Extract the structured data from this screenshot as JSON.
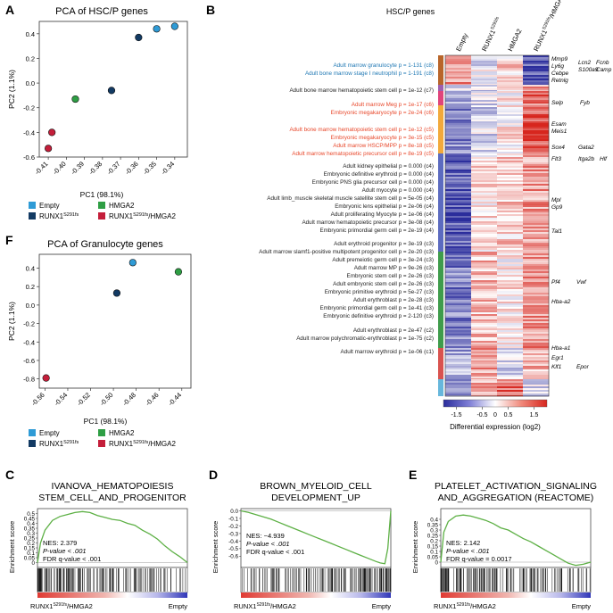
{
  "panel_letters": {
    "A": "A",
    "B": "B",
    "C": "C",
    "D": "D",
    "E": "E",
    "F": "F"
  },
  "colors": {
    "empty": "#2f9bd6",
    "runx1": "#123a63",
    "hmga2": "#2e9e44",
    "runx1_hmga2": "#c41e3a",
    "blue_text": "#1f78b4",
    "red_text": "#e8472a",
    "gsea_line": "#5db045"
  },
  "legend": {
    "empty": "Empty",
    "hmga2": "HMGA2",
    "runx1_base": "RUNX1",
    "runx1_sup": "S291fs",
    "runx1_hmga2_suffix": "/HMGA2"
  },
  "chart_data": [
    {
      "id": "A",
      "type": "scatter",
      "title": "PCA of HSC/P genes",
      "xlabel": "PC1 (98.1%)",
      "ylabel": "PC2 (1.1%)",
      "xlim": [
        -0.415,
        -0.333
      ],
      "ylim": [
        -0.6,
        0.5
      ],
      "xticks": [
        -0.41,
        -0.4,
        -0.39,
        -0.38,
        -0.37,
        -0.36,
        -0.35,
        -0.34
      ],
      "xtick_labels": [
        "-0.41",
        "-0.40",
        "-0.39",
        "-0.38",
        "-0.37",
        "-0.36",
        "-0.35",
        "-0.34"
      ],
      "yticks": [
        0.4,
        0.2,
        0.0,
        -0.2,
        -0.4,
        -0.6
      ],
      "ytick_labels": [
        "0.4",
        "0.2",
        "0.0",
        "-0.2",
        "-0.4",
        "-0.6"
      ],
      "series": [
        {
          "name": "Empty",
          "color_key": "empty",
          "points": [
            [
              -0.34,
              0.46
            ],
            [
              -0.35,
              0.44
            ]
          ]
        },
        {
          "name": "RUNX1 S291fs",
          "color_key": "runx1",
          "points": [
            [
              -0.36,
              0.37
            ],
            [
              -0.375,
              -0.06
            ]
          ]
        },
        {
          "name": "HMGA2",
          "color_key": "hmga2",
          "points": [
            [
              -0.395,
              -0.13
            ]
          ]
        },
        {
          "name": "RUNX1 S291fs/HMGA2",
          "color_key": "runx1_hmga2",
          "points": [
            [
              -0.408,
              -0.4
            ],
            [
              -0.41,
              -0.53
            ]
          ]
        }
      ]
    },
    {
      "id": "F",
      "type": "scatter",
      "title": "PCA of Granulocyte genes",
      "xlabel": "PC1 (98.1%)",
      "ylabel": "PC2 (1.1%)",
      "xlim": [
        -0.565,
        -0.432
      ],
      "ylim": [
        -0.9,
        0.55
      ],
      "xticks": [
        -0.56,
        -0.54,
        -0.52,
        -0.5,
        -0.48,
        -0.46,
        -0.44
      ],
      "xtick_labels": [
        "-0.56",
        "-0.54",
        "-0.52",
        "-0.50",
        "-0.48",
        "-0.46",
        "-0.44"
      ],
      "yticks": [
        0.4,
        0.2,
        0.0,
        -0.2,
        -0.4,
        -0.6,
        -0.8
      ],
      "ytick_labels": [
        "0.4",
        "0.2",
        "0.0",
        "-0.2",
        "-0.4",
        "-0.6",
        "-0.8"
      ],
      "series": [
        {
          "name": "Empty",
          "color_key": "empty",
          "points": [
            [
              -0.483,
              0.46
            ]
          ]
        },
        {
          "name": "RUNX1 S291fs",
          "color_key": "runx1",
          "points": [
            [
              -0.497,
              0.13
            ]
          ]
        },
        {
          "name": "HMGA2",
          "color_key": "hmga2",
          "points": [
            [
              -0.443,
              0.36
            ]
          ]
        },
        {
          "name": "RUNX1 S291fs/HMGA2",
          "color_key": "runx1_hmga2",
          "points": [
            [
              -0.559,
              -0.79
            ]
          ]
        }
      ]
    },
    {
      "id": "B",
      "type": "heatmap",
      "title": "HSC/P genes",
      "columns": [
        {
          "base": "Empty",
          "sup": "",
          "suffix": ""
        },
        {
          "base": "RUNX1",
          "sup": "S291fs",
          "suffix": ""
        },
        {
          "base": "HMGA2",
          "sup": "",
          "suffix": ""
        },
        {
          "base": "RUNX1",
          "sup": "S291fs",
          "suffix": "/HMGA2"
        }
      ],
      "colorbar": {
        "ticks": [
          -1.5,
          -0.5,
          0.5,
          1.5
        ],
        "tick_labels": [
          "-1.5",
          "-0.5",
          "0.5",
          "1.5"
        ],
        "zero_label": "0",
        "range": [
          -2,
          2
        ],
        "label": "Differential expression (log2)"
      },
      "clusters": [
        {
          "name": "c8",
          "color": "#b8652a",
          "profile": [
            1.0,
            -0.2,
            0.4,
            -1.6
          ]
        },
        {
          "name": "c7",
          "color": "#9d5fae",
          "profile": [
            -0.4,
            -0.3,
            0.1,
            0.8
          ]
        },
        {
          "name": "c6",
          "color": "#e0447b",
          "profile": [
            -0.6,
            -0.3,
            0.2,
            1.3
          ]
        },
        {
          "name": "c5",
          "color": "#f2a93b",
          "profile": [
            -1.1,
            -0.4,
            0.2,
            1.6
          ]
        },
        {
          "name": "c4",
          "color": "#5c6bc0",
          "profile": [
            -1.5,
            0.3,
            0.5,
            0.9
          ]
        },
        {
          "name": "c3",
          "color": "#3f9c4b",
          "profile": [
            -1.2,
            0.6,
            0.2,
            1.0
          ]
        },
        {
          "name": "c2",
          "color": "#d9534f",
          "profile": [
            -0.8,
            0.9,
            -0.3,
            0.7
          ]
        },
        {
          "name": "c1",
          "color": "#67b7dc",
          "profile": [
            -1.0,
            0.7,
            1.4,
            -0.4
          ]
        }
      ],
      "annotations": [
        {
          "text": "Adult marrow granulocyte p = 1-131 (c8)",
          "color_key": "blue_text"
        },
        {
          "text": "Adult bone marrow stage I neutrophil p = 1-191 (c8)",
          "color_key": "blue_text"
        },
        {
          "text": "Adult bone marrow hematopoietic stem cell p = 1e-12 (c7)",
          "color_key": "default"
        },
        {
          "text": "Adult marrow Meg p = 1e-17 (c6)",
          "color_key": "red_text"
        },
        {
          "text": "Embryonic megakaryocyte p = 2e-24 (c6)",
          "color_key": "red_text"
        },
        {
          "text": "Adult bone marrow hematopoietic stem cell p = 1e-12 (c5)",
          "color_key": "red_text"
        },
        {
          "text": "Embryonic megakaryocyte p = 3e-15 (c5)",
          "color_key": "red_text"
        },
        {
          "text": "Adult marrow HSCP/MPP p = 8e-18 (c5)",
          "color_key": "red_text"
        },
        {
          "text": "Adult marrow hematopoietic precursor cell p = 8e-19 (c5)",
          "color_key": "red_text"
        },
        {
          "text": "Adult kidney epithelial p = 0.000 (c4)",
          "color_key": "default"
        },
        {
          "text": "Embryonic definitive erythroid p = 0.000 (c4)",
          "color_key": "default"
        },
        {
          "text": "Embryonic PNS glia precursor cell p = 0.000 (c4)",
          "color_key": "default"
        },
        {
          "text": "Adult myocyte p = 0.000 (c4)",
          "color_key": "default"
        },
        {
          "text": "Adult limb_muscle skeletal muscle satellite stem cell p = 5e-05 (c4)",
          "color_key": "default"
        },
        {
          "text": "Embryonic lens epithelial p = 2e-06 (c4)",
          "color_key": "default"
        },
        {
          "text": "Adult proliferating Myocyte p = 1e-06 (c4)",
          "color_key": "default"
        },
        {
          "text": "Adult marrow hematopoietic precursor p = 3e-08 (c4)",
          "color_key": "default"
        },
        {
          "text": "Embryonic primordial germ cell p = 2e-19 (c4)",
          "color_key": "default"
        },
        {
          "text": "Adult erythroid progenitor p = 3e-19 (c3)",
          "color_key": "default"
        },
        {
          "text": "Adult marrow slamf1-positive multipotent progenitor cell p = 2e-20 (c3)",
          "color_key": "default"
        },
        {
          "text": "Adult premeiotic germ cell p = 3e-24 (c3)",
          "color_key": "default"
        },
        {
          "text": "Adult marrow MP p = 9e-26 (c3)",
          "color_key": "default"
        },
        {
          "text": "Embryonic stem cell p = 2e-26 (c3)",
          "color_key": "default"
        },
        {
          "text": "Adult embryonic stem cell p = 2e-26 (c3)",
          "color_key": "default"
        },
        {
          "text": "Embryonic primitive erythroid p = 5e-27 (c3)",
          "color_key": "default"
        },
        {
          "text": "Adult erythroblast p = 2e-28 (c3)",
          "color_key": "default"
        },
        {
          "text": "Embryonic primordial germ cell p = 1e-41 (c3)",
          "color_key": "default"
        },
        {
          "text": "Embryonic definitive erythroid p = 2-120 (c3)",
          "color_key": "default"
        },
        {
          "text": "Adult erythroblast p = 2e-47 (c2)",
          "color_key": "default"
        },
        {
          "text": "Adult marrow polychromatic-erythroblast p = 1e-75 (c2)",
          "color_key": "default"
        },
        {
          "text": "Adult marrow erythroid p = 1e-06 (c1)",
          "color_key": "default"
        }
      ],
      "gene_labels": [
        "Mmp9",
        "Ly6g",
        "Cebpe",
        "Retnlg",
        "Lcn2",
        "S100a9",
        "Fcnb",
        "Camp",
        "Selp",
        "Fyb",
        "Esam",
        "Meis1",
        "Sox4",
        "Gata2",
        "Flt3",
        "Itga2b",
        "Hlf",
        "Mpl",
        "Gp9",
        "Tal1",
        "Pf4",
        "Vwf",
        "Hba-a2",
        "Hba-a1",
        "Egr1",
        "Klf1",
        "Epor"
      ]
    },
    {
      "id": "C",
      "type": "line",
      "title_lines": [
        "IVANOVA_HEMATOPOIESIS",
        "STEM_CELL_AND_PROGENITOR"
      ],
      "ylabel": "Enrichment score",
      "ylim": [
        -0.05,
        0.55
      ],
      "yticks": [
        0.5,
        0.45,
        0.4,
        0.35,
        0.3,
        0.25,
        0.2,
        0.15,
        0.1,
        0.05,
        0.0
      ],
      "ytick_labels": [
        "0.5",
        "0.45",
        "0.4",
        "0.35",
        "0.3",
        "0.25",
        "0.2",
        "0.15",
        "0.1",
        "0.05",
        "0"
      ],
      "x": [
        0,
        0.02,
        0.05,
        0.1,
        0.15,
        0.2,
        0.25,
        0.3,
        0.35,
        0.4,
        0.45,
        0.5,
        0.55,
        0.6,
        0.65,
        0.7,
        0.75,
        0.8,
        0.85,
        0.9,
        0.95,
        1.0
      ],
      "y": [
        0.0,
        0.2,
        0.33,
        0.43,
        0.47,
        0.49,
        0.51,
        0.52,
        0.51,
        0.48,
        0.46,
        0.44,
        0.43,
        0.4,
        0.38,
        0.33,
        0.29,
        0.24,
        0.17,
        0.11,
        0.06,
        0.0
      ],
      "stats": {
        "nes": "NES: 2.379",
        "p": "P-value < .001",
        "fdr": "FDR q-value < .001"
      },
      "left_label_base": "RUNX1",
      "left_label_sup": "S291fs",
      "left_label_suffix": "/HMGA2",
      "right_label": "Empty",
      "hit_seed": 11,
      "hit_bias": "left"
    },
    {
      "id": "D",
      "type": "line",
      "title_lines": [
        "BROWN_MYELOID_CELL",
        "DEVELOPMENT_UP"
      ],
      "ylabel": "Enrichment score",
      "ylim": [
        -0.75,
        0.03
      ],
      "yticks": [
        0.0,
        -0.1,
        -0.2,
        -0.3,
        -0.4,
        -0.5,
        -0.6
      ],
      "ytick_labels": [
        "0.0",
        "-0.1",
        "-0.2",
        "-0.3",
        "-0.4",
        "-0.5",
        "-0.6"
      ],
      "x": [
        0,
        0.05,
        0.1,
        0.15,
        0.2,
        0.25,
        0.3,
        0.35,
        0.4,
        0.45,
        0.5,
        0.55,
        0.6,
        0.65,
        0.7,
        0.75,
        0.8,
        0.85,
        0.9,
        0.93,
        0.96,
        0.98,
        1.0
      ],
      "y": [
        0.0,
        -0.02,
        -0.05,
        -0.08,
        -0.11,
        -0.15,
        -0.19,
        -0.23,
        -0.27,
        -0.31,
        -0.35,
        -0.39,
        -0.43,
        -0.47,
        -0.51,
        -0.55,
        -0.59,
        -0.63,
        -0.67,
        -0.69,
        -0.7,
        -0.5,
        0.0
      ],
      "stats": {
        "nes": "NES: −4.939",
        "p": "P-value < .001",
        "fdr": "FDR q-value < .001"
      },
      "left_label_base": "RUNX1",
      "left_label_sup": "S291fs",
      "left_label_suffix": "/HMGA2",
      "right_label": "Empty",
      "hit_seed": 23,
      "hit_bias": "right"
    },
    {
      "id": "E",
      "type": "line",
      "title_lines": [
        "PLATELET_ACTIVATION_SIGNALING",
        "AND_AGGREGATION (REACTOME)"
      ],
      "ylabel": "Enrichment score",
      "ylim": [
        -0.05,
        0.5
      ],
      "yticks": [
        0.4,
        0.35,
        0.3,
        0.25,
        0.2,
        0.15,
        0.1,
        0.05,
        0.0
      ],
      "ytick_labels": [
        "0.4",
        "0.35",
        "0.3",
        "0.25",
        "0.2",
        "0.15",
        "0.1",
        "0.05",
        "0"
      ],
      "x": [
        0,
        0.02,
        0.05,
        0.1,
        0.15,
        0.2,
        0.25,
        0.3,
        0.35,
        0.4,
        0.45,
        0.5,
        0.55,
        0.6,
        0.65,
        0.7,
        0.75,
        0.8,
        0.85,
        0.9,
        0.95,
        1.0
      ],
      "y": [
        0.0,
        0.28,
        0.38,
        0.43,
        0.44,
        0.43,
        0.41,
        0.39,
        0.36,
        0.32,
        0.3,
        0.26,
        0.22,
        0.19,
        0.15,
        0.11,
        0.07,
        0.03,
        -0.01,
        -0.03,
        -0.02,
        0.0
      ],
      "stats": {
        "nes": "NES: 2.142",
        "p": "P-value < .001",
        "fdr": "FDR q-value = 0.0017"
      },
      "left_label_base": "RUNX1",
      "left_label_sup": "S291fs",
      "left_label_suffix": "/HMGA2",
      "right_label": "Empty",
      "hit_seed": 37,
      "hit_bias": "left"
    }
  ]
}
